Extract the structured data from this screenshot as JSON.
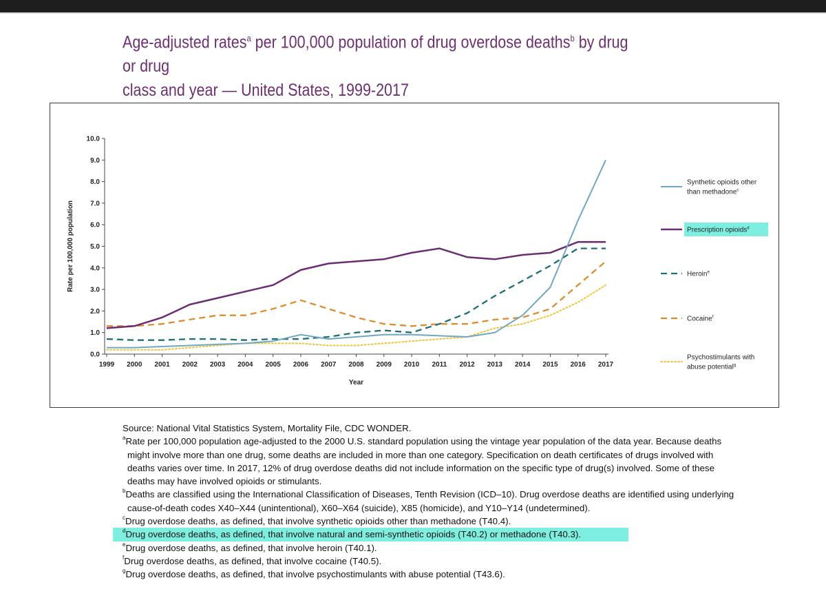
{
  "title": {
    "line1_pre": "Age-adjusted rates",
    "sup_a": "a",
    "line1_mid": " per 100,000 population of drug overdose deaths",
    "sup_b": "b",
    "line1_post": " by drug or drug",
    "line2": "class and year — United States, 1999-2017"
  },
  "colors": {
    "synthetic": "#6fa7c3",
    "prescription": "#6b2c73",
    "heroin": "#1d6f74",
    "cocaine": "#e08a2e",
    "psychostimulants": "#f0c43a",
    "highlight": "#7eeee0",
    "title": "#6f2f72"
  },
  "chart_data": {
    "type": "line",
    "title": "",
    "xlabel": "Year",
    "ylabel": "Rate per 100,000 population",
    "ylim": [
      0,
      10
    ],
    "yticks": [
      "0.0",
      "1.0",
      "2.0",
      "3.0",
      "4.0",
      "5.0",
      "6.0",
      "7.0",
      "8.0",
      "9.0",
      "10.0"
    ],
    "categories": [
      "1999",
      "2000",
      "2001",
      "2002",
      "2003",
      "2004",
      "2005",
      "2006",
      "2007",
      "2008",
      "2009",
      "2010",
      "2011",
      "2012",
      "2013",
      "2014",
      "2015",
      "2016",
      "2017"
    ],
    "series": [
      {
        "key": "synthetic",
        "name": "Synthetic opioids other than methadone",
        "sup": "c",
        "legend_lines": [
          "Synthetic opioids other",
          "than methadone"
        ],
        "style": "solid",
        "values": [
          0.3,
          0.3,
          0.35,
          0.4,
          0.45,
          0.5,
          0.6,
          0.9,
          0.7,
          0.8,
          0.9,
          0.9,
          0.85,
          0.8,
          1.0,
          1.8,
          3.1,
          6.2,
          9.0
        ]
      },
      {
        "key": "prescription",
        "name": "Prescription opioids",
        "sup": "d",
        "legend_lines": [
          "Prescription opioids"
        ],
        "style": "solid",
        "highlighted": true,
        "values": [
          1.2,
          1.3,
          1.7,
          2.3,
          2.6,
          2.9,
          3.2,
          3.9,
          4.2,
          4.3,
          4.4,
          4.7,
          4.9,
          4.5,
          4.4,
          4.6,
          4.7,
          5.2,
          5.2
        ]
      },
      {
        "key": "heroin",
        "name": "Heroin",
        "sup": "e",
        "legend_lines": [
          "Heroin"
        ],
        "style": "dash",
        "values": [
          0.7,
          0.65,
          0.65,
          0.7,
          0.7,
          0.65,
          0.7,
          0.7,
          0.8,
          1.0,
          1.1,
          1.0,
          1.4,
          1.9,
          2.7,
          3.4,
          4.1,
          4.9,
          4.9
        ]
      },
      {
        "key": "cocaine",
        "name": "Cocaine",
        "sup": "f",
        "legend_lines": [
          "Cocaine"
        ],
        "style": "dash",
        "values": [
          1.3,
          1.3,
          1.4,
          1.6,
          1.8,
          1.8,
          2.1,
          2.5,
          2.1,
          1.7,
          1.4,
          1.3,
          1.4,
          1.4,
          1.6,
          1.7,
          2.1,
          3.2,
          4.3
        ]
      },
      {
        "key": "psychostimulants",
        "name": "Psychostimulants with abuse potential",
        "sup": "g",
        "legend_lines": [
          "Psychostimulants with",
          "abuse potential"
        ],
        "style": "dot",
        "values": [
          0.2,
          0.2,
          0.2,
          0.3,
          0.4,
          0.5,
          0.5,
          0.5,
          0.4,
          0.4,
          0.5,
          0.6,
          0.7,
          0.8,
          1.2,
          1.4,
          1.8,
          2.4,
          3.2
        ]
      }
    ]
  },
  "notes": {
    "source": "Source: National Vital Statistics System, Mortality File, CDC WONDER.",
    "a_mark": "a",
    "a_line1": "Rate per 100,000 population age-adjusted to the 2000 U.S. standard population using the vintage year population of the data year. Because deaths",
    "a_line2": "might involve more than one drug, some deaths are included in more than one category. Specification on death certificates of drugs involved with",
    "a_line3": "deaths varies over time. In 2017, 12% of drug overdose deaths did not include information on the specific type of drug(s) involved. Some of these",
    "a_line4": "deaths may have involved opioids or stimulants.",
    "b_mark": "b",
    "b_line1": "Deaths are classified using the International Classification of Diseases, Tenth Revision (ICD–10). Drug overdose deaths are identified using underlying",
    "b_line2": "cause-of-death codes X40–X44 (unintentional), X60–X64 (suicide), X85 (homicide), and Y10–Y14 (undetermined).",
    "c_mark": "c",
    "c_text": "Drug overdose deaths, as defined, that involve synthetic opioids other than methadone (T40.4).",
    "d_mark": "d",
    "d_text": "Drug overdose deaths, as defined, that involve natural and semi-synthetic opioids (T40.2) or methadone (T40.3).",
    "e_mark": "e",
    "e_text": "Drug overdose deaths, as defined, that involve heroin (T40.1).",
    "f_mark": "f",
    "f_text": "Drug overdose deaths, as defined, that involve cocaine (T40.5).",
    "g_mark": "g",
    "g_text": "Drug overdose deaths, as defined, that involve psychostimulants with abuse potential (T43.6)."
  }
}
